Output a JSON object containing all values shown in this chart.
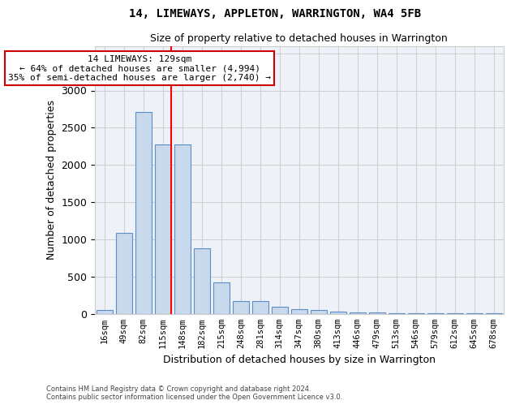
{
  "title": "14, LIMEWAYS, APPLETON, WARRINGTON, WA4 5FB",
  "subtitle": "Size of property relative to detached houses in Warrington",
  "xlabel": "Distribution of detached houses by size in Warrington",
  "ylabel": "Number of detached properties",
  "categories": [
    "16sqm",
    "49sqm",
    "82sqm",
    "115sqm",
    "148sqm",
    "182sqm",
    "215sqm",
    "248sqm",
    "281sqm",
    "314sqm",
    "347sqm",
    "380sqm",
    "413sqm",
    "446sqm",
    "479sqm",
    "513sqm",
    "546sqm",
    "579sqm",
    "612sqm",
    "645sqm",
    "678sqm"
  ],
  "values": [
    50,
    1090,
    2710,
    2280,
    2280,
    880,
    415,
    165,
    165,
    90,
    55,
    50,
    30,
    20,
    20,
    10,
    10,
    5,
    5,
    5,
    5
  ],
  "bar_color": "#c9d9ec",
  "bar_edge_color": "#5b8ec4",
  "grid_color": "#d0d0d0",
  "background_color": "#ffffff",
  "plot_background_color": "#eef2f8",
  "red_line_index": 3,
  "annotation_text": "14 LIMEWAYS: 129sqm\n← 64% of detached houses are smaller (4,994)\n35% of semi-detached houses are larger (2,740) →",
  "annotation_box_color": "#ffffff",
  "annotation_box_edge_color": "#cc0000",
  "footer_line1": "Contains HM Land Registry data © Crown copyright and database right 2024.",
  "footer_line2": "Contains public sector information licensed under the Open Government Licence v3.0.",
  "ylim": [
    0,
    3600
  ],
  "yticks": [
    0,
    500,
    1000,
    1500,
    2000,
    2500,
    3000,
    3500
  ]
}
